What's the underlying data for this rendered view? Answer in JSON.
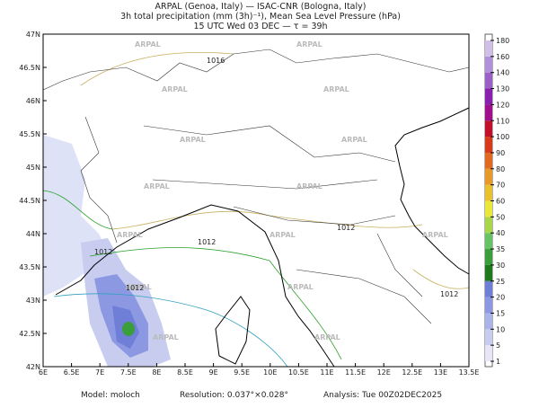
{
  "header": {
    "line1": "ARPAL (Genoa, Italy)  —  ISAC-CNR (Bologna, Italy)",
    "line2": "3h total precipitation (mm (3h)⁻¹), Mean Sea Level Pressure (hPa)",
    "line3": "15 UTC Wed 03 DEC  —  τ = 39h"
  },
  "map": {
    "lon_labels": [
      "6E",
      "6.5E",
      "7E",
      "7.5E",
      "8E",
      "8.5E",
      "9E",
      "9.5E",
      "10E",
      "10.5E",
      "11E",
      "11.5E",
      "12E",
      "12.5E",
      "13E",
      "13.5E"
    ],
    "lat_labels": [
      "42N",
      "42.5N",
      "43N",
      "43.5N",
      "44N",
      "44.5N",
      "45N",
      "45.5N",
      "46N",
      "46.5N",
      "47N"
    ],
    "watermark": "ARPAL",
    "isobar_labels": [
      "1016",
      "1012",
      "1012",
      "1012",
      "1012",
      "1012"
    ]
  },
  "colorbar": {
    "labels": [
      "1",
      "5",
      "10",
      "15",
      "20",
      "25",
      "30",
      "35",
      "40",
      "50",
      "60",
      "70",
      "80",
      "90",
      "100",
      "110",
      "120",
      "130",
      "140",
      "160",
      "180"
    ],
    "colors": [
      "#e6e6f7",
      "#c8cdf0",
      "#aab4ea",
      "#8c99e2",
      "#6f7fd8",
      "#1f7a1f",
      "#3a9e3a",
      "#66c266",
      "#a8d84a",
      "#e8e83a",
      "#e8c030",
      "#e89a28",
      "#e06a20",
      "#d63a1a",
      "#c0102a",
      "#a0108a",
      "#8a20b0",
      "#9a60c8",
      "#b090d8",
      "#d0c0e8"
    ]
  },
  "footer": {
    "model": "Model:  moloch",
    "resolution": "Resolution:  0.037°×0.028°",
    "analysis": "Analysis:  Tue 00Z02DEC2025"
  }
}
